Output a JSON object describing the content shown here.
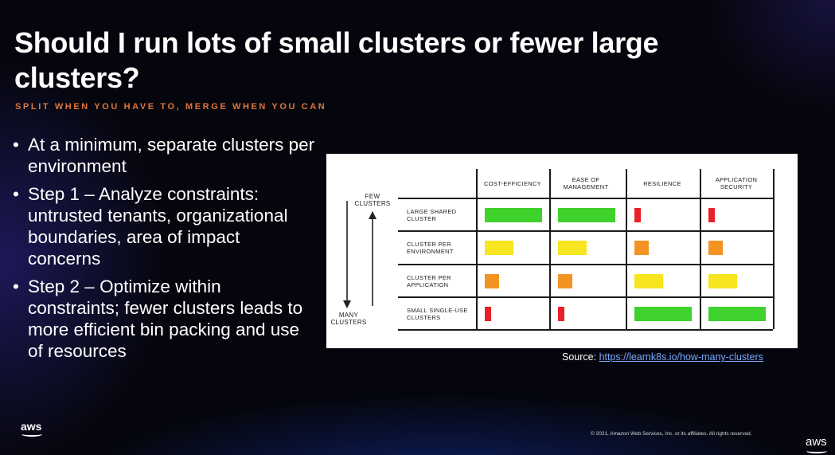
{
  "slide": {
    "title": "Should I run lots of small clusters or fewer large clusters?",
    "subtitle": "SPLIT WHEN YOU HAVE TO, MERGE WHEN YOU CAN",
    "bullets": [
      "At a minimum, separate clusters per environment",
      "Step 1 – Analyze constraints: untrusted tenants, organizational boundaries, area of impact concerns",
      "Step 2 – Optimize within constraints; fewer clusters leads to more efficient bin packing and use of resources"
    ],
    "source_prefix": "Source: ",
    "source_link": "https://learnk8s.io/how-many-clusters",
    "copyright": "© 2021, Amazon Web Services, Inc. or its affiliates. All rights reserved.",
    "logo_text": "aws",
    "corner_logo_text": "aws"
  },
  "figure": {
    "axis_top": "FEW\nCLUSTERS",
    "axis_bottom": "MANY\nCLUSTERS",
    "columns": [
      "COST-EFFICIENCY",
      "EASE OF\nMANAGEMENT",
      "RESILIENCE",
      "APPLICATION\nSECURITY"
    ],
    "rows": [
      {
        "label": "LARGE SHARED\nCLUSTER",
        "ratings": [
          "high",
          "high",
          "very-low",
          "very-low"
        ]
      },
      {
        "label": "CLUSTER PER\nENVIRONMENT",
        "ratings": [
          "medium",
          "medium",
          "low",
          "low"
        ]
      },
      {
        "label": "CLUSTER PER\nAPPLICATION",
        "ratings": [
          "low",
          "low",
          "medium",
          "medium"
        ]
      },
      {
        "label": "SMALL SINGLE-USE\nCLUSTERS",
        "ratings": [
          "very-low",
          "very-low",
          "high",
          "high"
        ]
      }
    ],
    "rating_levels": {
      "very-low": 0.1,
      "low": 0.25,
      "medium": 0.5,
      "high": 1.0
    },
    "rating_colors": {
      "very-low": "#e8202a",
      "low": "#f39323",
      "medium": "#f6e51f",
      "high": "#3fd22c"
    }
  }
}
